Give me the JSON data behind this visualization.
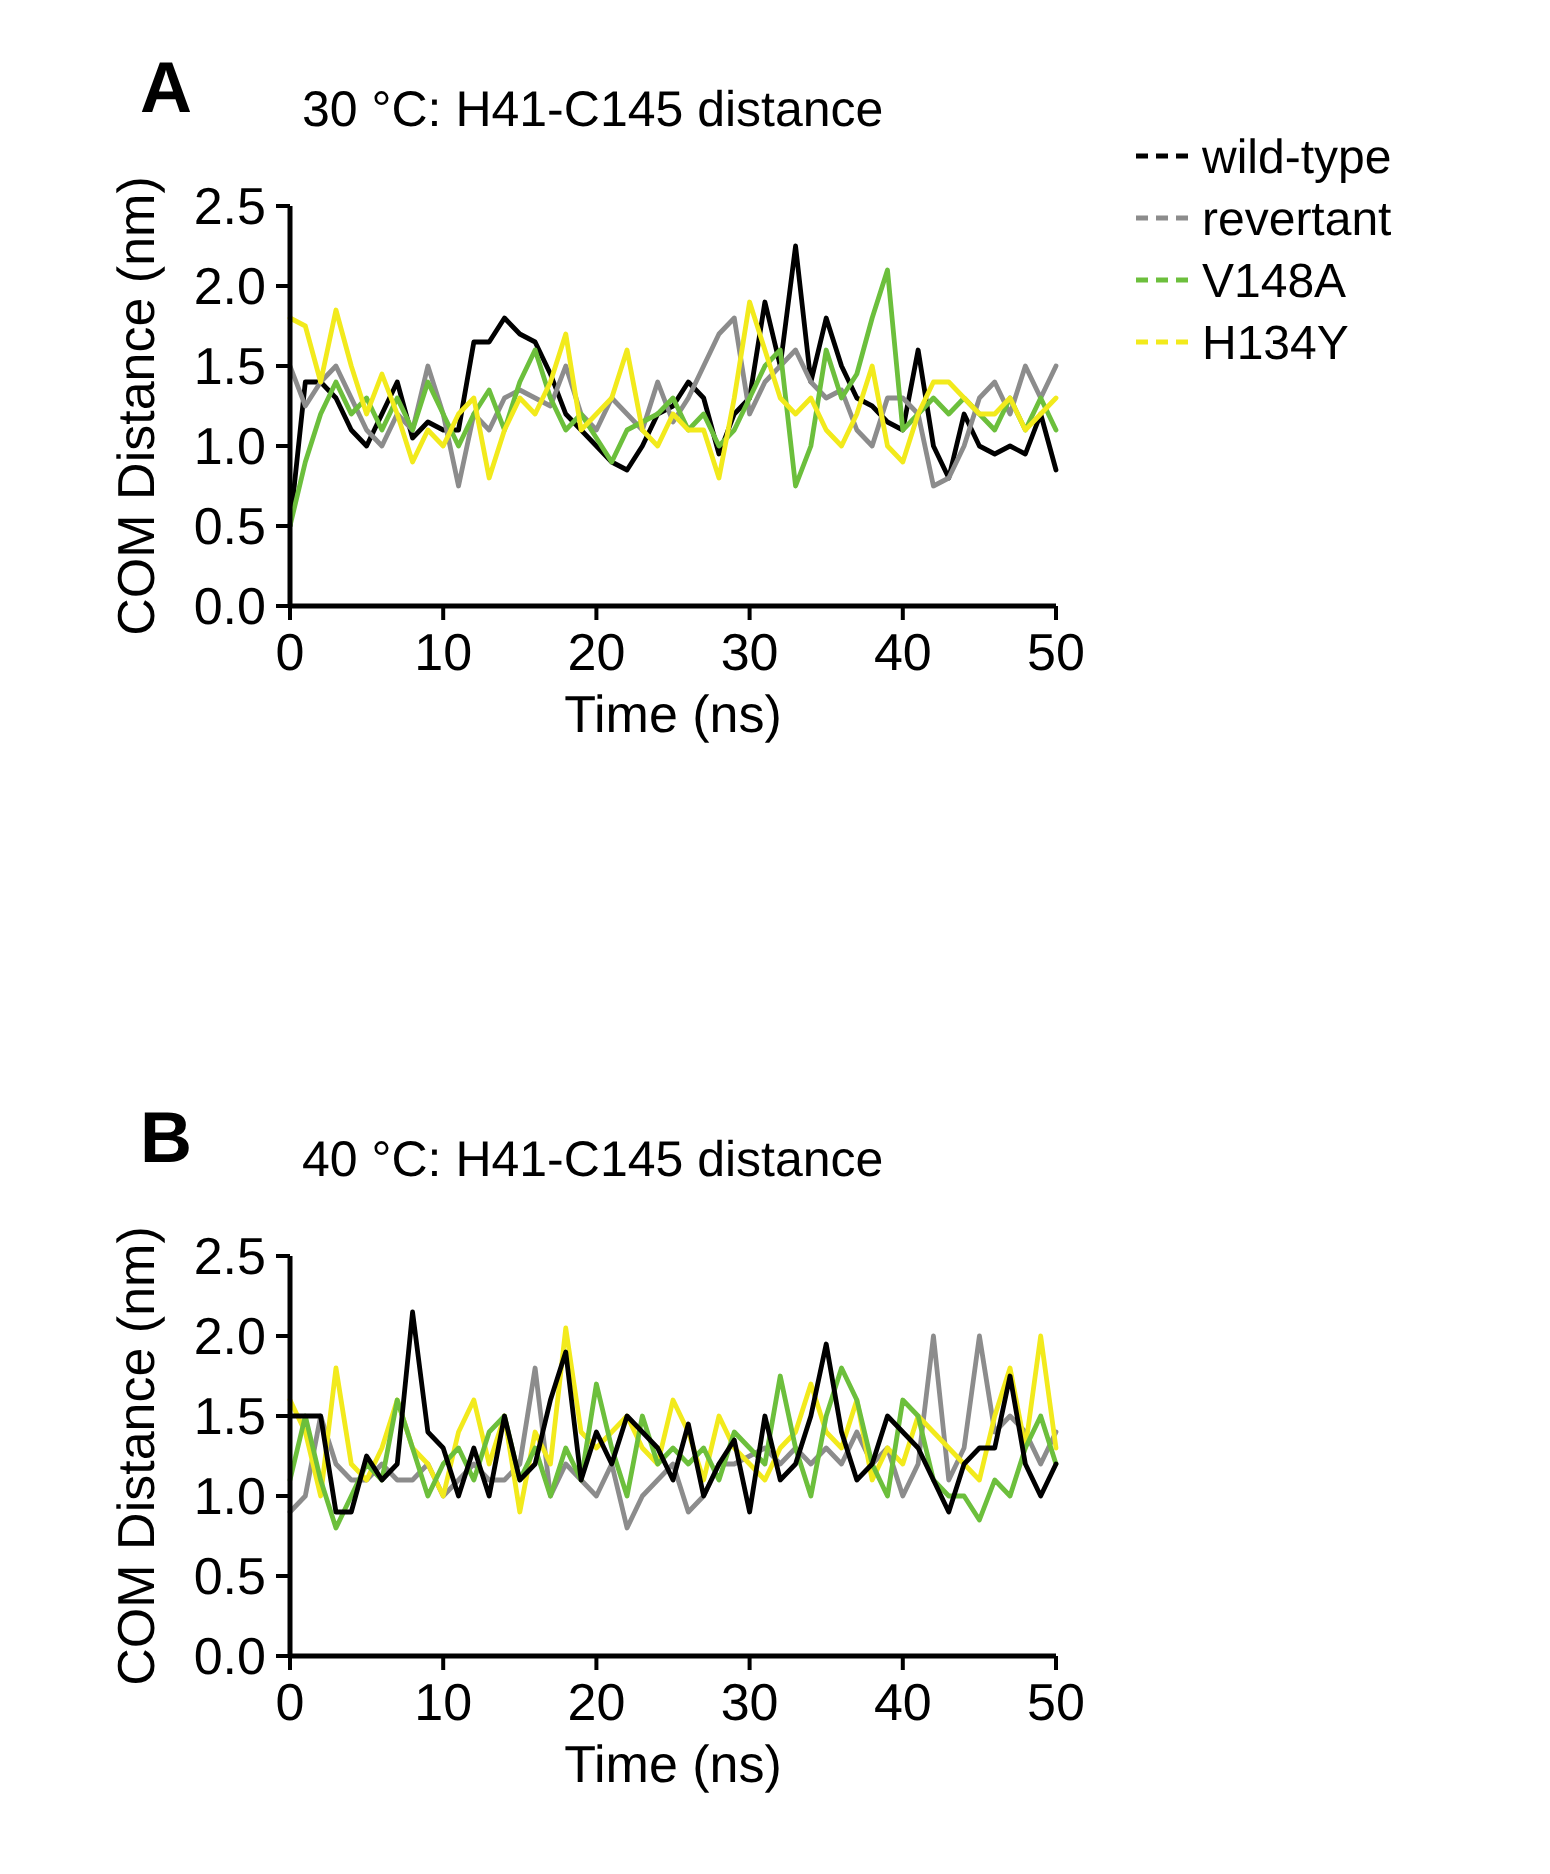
{
  "chart_data": [
    {
      "type": "line",
      "title": "30 °C: H41-C145 distance",
      "xlabel": "Time (ns)",
      "ylabel": "COM Distance (nm)",
      "annotations": [
        "A"
      ],
      "xlim": [
        0,
        50
      ],
      "ylim": [
        0,
        2.5
      ],
      "xticks": [
        0,
        10,
        20,
        30,
        40,
        50
      ],
      "yticks": [
        {
          "value": 0,
          "label": "0.0"
        },
        0.5,
        {
          "value": 1,
          "label": "1.0"
        },
        1.5,
        {
          "value": 2,
          "label": "2.0"
        },
        2.5
      ],
      "legend": "top right",
      "line_style": "solid",
      "marker": "none",
      "grid": false,
      "x": [
        0,
        1,
        2,
        3,
        4,
        5,
        6,
        7,
        8,
        9,
        10,
        11,
        12,
        13,
        14,
        15,
        16,
        17,
        18,
        19,
        20,
        21,
        22,
        23,
        24,
        25,
        26,
        27,
        28,
        29,
        30,
        31,
        32,
        33,
        34,
        35,
        36,
        37,
        38,
        39,
        40,
        41,
        42,
        43,
        44,
        45,
        46,
        47,
        48,
        49,
        50
      ],
      "series": [
        {
          "name": "wild-type",
          "color": "#000000",
          "values": [
            0.5,
            1.4,
            1.4,
            1.3,
            1.1,
            1.0,
            1.2,
            1.4,
            1.05,
            1.15,
            1.1,
            1.1,
            1.65,
            1.65,
            1.8,
            1.7,
            1.65,
            1.45,
            1.2,
            1.1,
            1.0,
            0.9,
            0.85,
            1.0,
            1.2,
            1.25,
            1.4,
            1.3,
            0.95,
            1.2,
            1.3,
            1.9,
            1.5,
            2.25,
            1.4,
            1.8,
            1.5,
            1.3,
            1.25,
            1.15,
            1.1,
            1.6,
            1.0,
            0.8,
            1.2,
            1.0,
            0.95,
            1.0,
            0.95,
            1.2,
            0.85
          ]
        },
        {
          "name": "revertant",
          "color": "#8c8c8c",
          "values": [
            1.5,
            1.25,
            1.4,
            1.5,
            1.3,
            1.1,
            1.0,
            1.2,
            1.1,
            1.5,
            1.2,
            0.75,
            1.2,
            1.1,
            1.3,
            1.35,
            1.3,
            1.25,
            1.5,
            1.2,
            1.1,
            1.3,
            1.2,
            1.1,
            1.4,
            1.15,
            1.3,
            1.5,
            1.7,
            1.8,
            1.2,
            1.4,
            1.5,
            1.6,
            1.4,
            1.3,
            1.35,
            1.1,
            1.0,
            1.3,
            1.3,
            1.2,
            0.75,
            0.8,
            1.0,
            1.3,
            1.4,
            1.2,
            1.5,
            1.3,
            1.5
          ]
        },
        {
          "name": "V148A",
          "color": "#6cbf3c",
          "values": [
            0.5,
            0.9,
            1.2,
            1.4,
            1.2,
            1.3,
            1.1,
            1.3,
            1.1,
            1.4,
            1.2,
            1.0,
            1.2,
            1.35,
            1.1,
            1.4,
            1.6,
            1.3,
            1.1,
            1.2,
            1.05,
            0.9,
            1.1,
            1.15,
            1.2,
            1.3,
            1.1,
            1.2,
            1.0,
            1.1,
            1.3,
            1.5,
            1.6,
            0.75,
            1.0,
            1.6,
            1.3,
            1.45,
            1.8,
            2.1,
            1.1,
            1.2,
            1.3,
            1.2,
            1.3,
            1.2,
            1.1,
            1.3,
            1.1,
            1.3,
            1.1
          ]
        },
        {
          "name": "H134Y",
          "color": "#f2ea1c",
          "values": [
            1.8,
            1.75,
            1.4,
            1.85,
            1.5,
            1.2,
            1.45,
            1.2,
            0.9,
            1.1,
            1.0,
            1.2,
            1.3,
            0.8,
            1.1,
            1.3,
            1.2,
            1.4,
            1.7,
            1.1,
            1.2,
            1.3,
            1.6,
            1.1,
            1.0,
            1.2,
            1.1,
            1.1,
            0.8,
            1.3,
            1.9,
            1.6,
            1.3,
            1.2,
            1.3,
            1.1,
            1.0,
            1.2,
            1.5,
            1.0,
            0.9,
            1.2,
            1.4,
            1.4,
            1.3,
            1.2,
            1.2,
            1.3,
            1.1,
            1.2,
            1.3
          ]
        }
      ]
    },
    {
      "type": "line",
      "title": "40 °C: H41-C145 distance",
      "xlabel": "Time (ns)",
      "ylabel": "COM Distance (nm)",
      "annotations": [
        "B"
      ],
      "xlim": [
        0,
        50
      ],
      "ylim": [
        0,
        2.5
      ],
      "xticks": [
        0,
        10,
        20,
        30,
        40,
        50
      ],
      "yticks": [
        {
          "value": 0,
          "label": "0.0"
        },
        0.5,
        {
          "value": 1,
          "label": "1.0"
        },
        1.5,
        {
          "value": 2,
          "label": "2.0"
        },
        2.5
      ],
      "line_style": "solid",
      "marker": "none",
      "grid": false,
      "x": [
        0,
        1,
        2,
        3,
        4,
        5,
        6,
        7,
        8,
        9,
        10,
        11,
        12,
        13,
        14,
        15,
        16,
        17,
        18,
        19,
        20,
        21,
        22,
        23,
        24,
        25,
        26,
        27,
        28,
        29,
        30,
        31,
        32,
        33,
        34,
        35,
        36,
        37,
        38,
        39,
        40,
        41,
        42,
        43,
        44,
        45,
        46,
        47,
        48,
        49,
        50
      ],
      "series": [
        {
          "color": "#8c8c8c",
          "values": [
            0.9,
            1.0,
            1.5,
            1.2,
            1.1,
            1.1,
            1.2,
            1.1,
            1.1,
            1.2,
            1.0,
            1.1,
            1.2,
            1.1,
            1.1,
            1.2,
            1.8,
            1.0,
            1.2,
            1.1,
            1.0,
            1.2,
            0.8,
            1.0,
            1.1,
            1.2,
            0.9,
            1.0,
            1.2,
            1.2,
            1.25,
            1.3,
            1.2,
            1.3,
            1.2,
            1.3,
            1.2,
            1.4,
            1.2,
            1.3,
            1.0,
            1.2,
            2.0,
            1.1,
            1.3,
            2.0,
            1.4,
            1.5,
            1.4,
            1.2,
            1.4
          ]
        },
        {
          "color": "#f2ea1c",
          "values": [
            1.6,
            1.4,
            1.0,
            1.8,
            1.2,
            1.1,
            1.3,
            1.6,
            1.3,
            1.2,
            1.0,
            1.4,
            1.6,
            1.2,
            1.5,
            0.9,
            1.4,
            1.2,
            2.05,
            1.4,
            1.3,
            1.4,
            1.5,
            1.3,
            1.2,
            1.6,
            1.4,
            1.1,
            1.5,
            1.3,
            1.2,
            1.1,
            1.3,
            1.4,
            1.7,
            1.4,
            1.3,
            1.6,
            1.1,
            1.3,
            1.2,
            1.5,
            1.4,
            1.3,
            1.2,
            1.1,
            1.5,
            1.8,
            1.3,
            2.0,
            1.3
          ]
        },
        {
          "color": "#6cbf3c",
          "values": [
            1.1,
            1.5,
            1.1,
            0.8,
            1.0,
            1.2,
            1.1,
            1.6,
            1.3,
            1.0,
            1.2,
            1.3,
            1.1,
            1.4,
            1.5,
            1.1,
            1.3,
            1.0,
            1.3,
            1.1,
            1.7,
            1.3,
            1.0,
            1.5,
            1.2,
            1.3,
            1.2,
            1.3,
            1.1,
            1.4,
            1.3,
            1.2,
            1.75,
            1.3,
            1.0,
            1.5,
            1.8,
            1.6,
            1.2,
            1.0,
            1.6,
            1.5,
            1.1,
            1.0,
            1.0,
            0.85,
            1.1,
            1.0,
            1.3,
            1.5,
            1.2
          ]
        },
        {
          "color": "#000000",
          "values": [
            1.5,
            1.5,
            1.5,
            0.9,
            0.9,
            1.25,
            1.1,
            1.2,
            2.15,
            1.4,
            1.3,
            1.0,
            1.3,
            1.0,
            1.5,
            1.1,
            1.2,
            1.6,
            1.9,
            1.1,
            1.4,
            1.2,
            1.5,
            1.4,
            1.3,
            1.1,
            1.45,
            1.0,
            1.2,
            1.35,
            0.9,
            1.5,
            1.1,
            1.2,
            1.5,
            1.95,
            1.4,
            1.1,
            1.2,
            1.5,
            1.4,
            1.3,
            1.1,
            0.9,
            1.2,
            1.3,
            1.3,
            1.75,
            1.2,
            1.0,
            1.2
          ]
        }
      ]
    }
  ]
}
